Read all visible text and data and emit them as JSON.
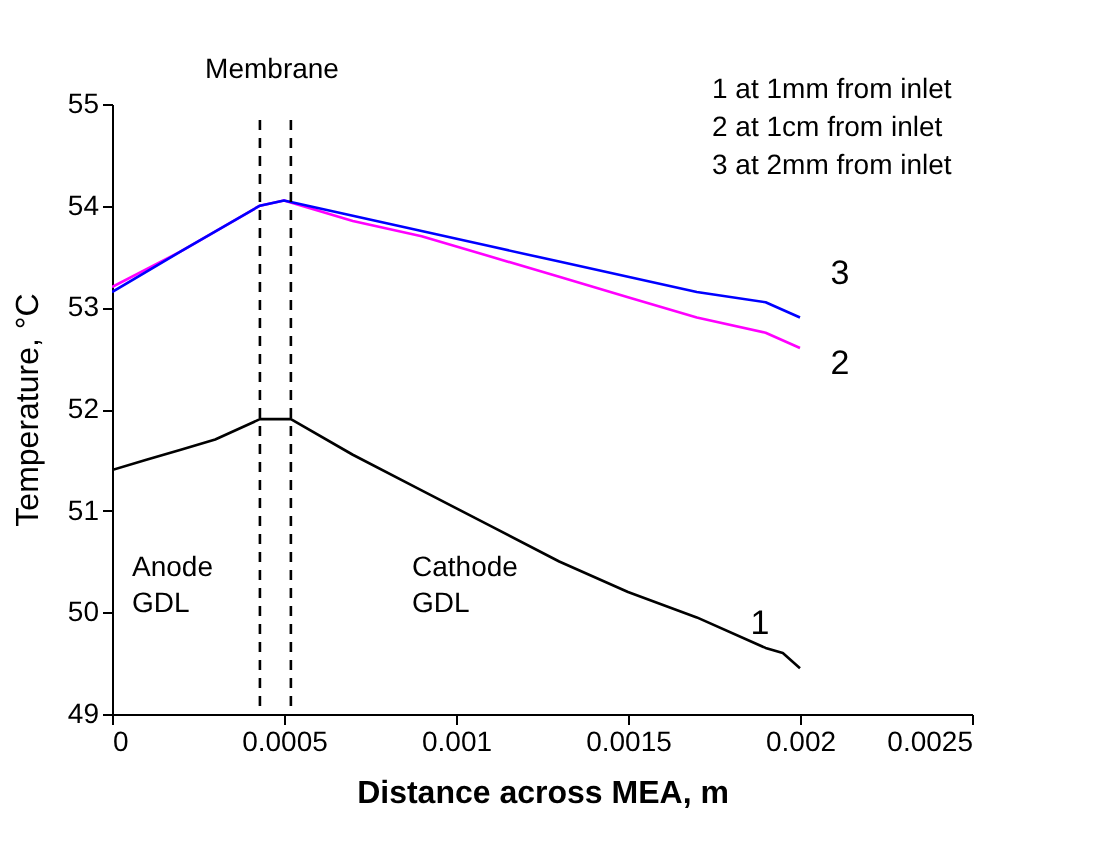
{
  "chart_data": {
    "type": "line",
    "xlabel": "Distance across MEA, m",
    "ylabel": "Temperature, °C",
    "xlim": [
      0,
      0.0025
    ],
    "xticks": [
      0,
      0.0005,
      0.001,
      0.0015,
      0.002,
      0.0025
    ],
    "ylim": [
      49,
      55
    ],
    "yticks": [
      49,
      50,
      51,
      52,
      53,
      54,
      55
    ],
    "grid": false,
    "legend": false,
    "marker": "none",
    "line_style": "solid",
    "series": [
      {
        "name": "1",
        "color": "#000000",
        "x": [
          0,
          0.0001,
          0.0002,
          0.0003,
          0.00043,
          0.00052,
          0.0007,
          0.0009,
          0.0011,
          0.0013,
          0.0015,
          0.0017,
          0.0019,
          0.00195,
          0.002
        ],
        "values": [
          51.4,
          51.5,
          51.6,
          51.7,
          51.9,
          51.9,
          51.55,
          51.2,
          50.85,
          50.5,
          50.2,
          49.95,
          49.65,
          49.6,
          49.45
        ]
      },
      {
        "name": "2",
        "color": "#ff00ff",
        "x": [
          0,
          0.0002,
          0.00043,
          0.0005,
          0.0007,
          0.0009,
          0.0011,
          0.0013,
          0.0015,
          0.0017,
          0.0019,
          0.002
        ],
        "values": [
          53.2,
          53.55,
          54.0,
          54.05,
          53.85,
          53.7,
          53.5,
          53.3,
          53.1,
          52.9,
          52.75,
          52.6
        ]
      },
      {
        "name": "3",
        "color": "#0000ff",
        "x": [
          0,
          0.0002,
          0.00043,
          0.0005,
          0.0007,
          0.0009,
          0.0011,
          0.0013,
          0.0015,
          0.0017,
          0.0019,
          0.002
        ],
        "values": [
          53.15,
          53.55,
          54.0,
          54.05,
          53.9,
          53.75,
          53.6,
          53.45,
          53.3,
          53.15,
          53.05,
          52.9
        ]
      }
    ],
    "ref_lines": [
      {
        "axis": "x",
        "value": 0.00043,
        "label": null,
        "color": "#000000",
        "line_style": "dashed"
      },
      {
        "axis": "x",
        "value": 0.00052,
        "label": null,
        "color": "#000000",
        "line_style": "dashed"
      }
    ],
    "annotations": [
      "Membrane",
      "1  at 1mm from inlet",
      "2  at 1cm from inlet",
      "3  at 2mm from inlet",
      "Anode\nGDL",
      "Cathode\nGDL"
    ]
  }
}
